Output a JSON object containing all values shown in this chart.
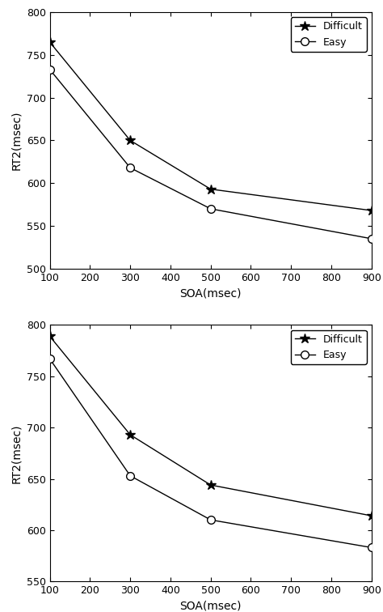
{
  "upper": {
    "soa": [
      100,
      300,
      500,
      900
    ],
    "difficult": [
      765,
      650,
      593,
      568
    ],
    "easy": [
      733,
      618,
      570,
      535
    ]
  },
  "lower": {
    "soa": [
      100,
      300,
      500,
      900
    ],
    "difficult": [
      789,
      693,
      644,
      614
    ],
    "easy": [
      767,
      653,
      610,
      583
    ]
  },
  "upper_ylim": [
    500,
    800
  ],
  "lower_ylim": [
    550,
    800
  ],
  "yticks_upper": [
    500,
    550,
    600,
    650,
    700,
    750,
    800
  ],
  "yticks_lower": [
    550,
    600,
    650,
    700,
    750,
    800
  ],
  "xticks": [
    100,
    200,
    300,
    400,
    500,
    600,
    700,
    800,
    900
  ],
  "xlim": [
    100,
    900
  ],
  "xlabel": "SOA(msec)",
  "ylabel": "RT2(msec)",
  "legend_difficult": "Difficult",
  "legend_easy": "Easy",
  "line_color": "#000000",
  "bg_color": "#ffffff",
  "marker_difficult": "*",
  "marker_easy": "o",
  "markersize_diff": 9,
  "markersize_easy": 7,
  "linewidth": 1.0,
  "fontsize_ticks": 9,
  "fontsize_label": 10,
  "fontsize_legend": 9
}
